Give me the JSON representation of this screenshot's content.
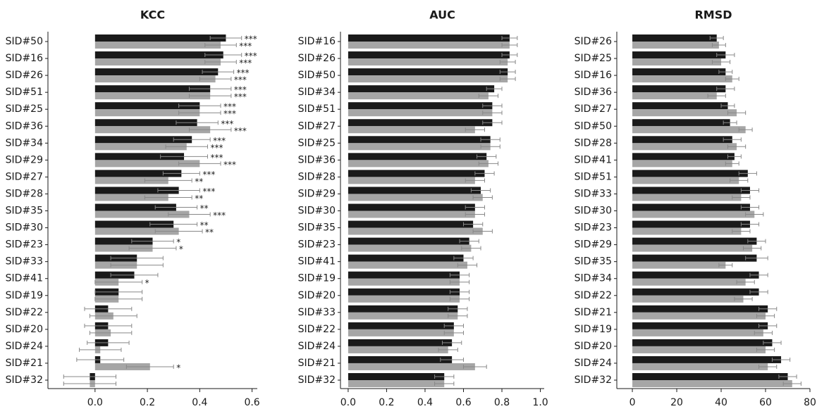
{
  "chart_data": [
    {
      "type": "bar",
      "orientation": "horizontal",
      "title": "KCC",
      "categories": [
        "SID#50",
        "SID#16",
        "SID#26",
        "SID#51",
        "SID#25",
        "SID#36",
        "SID#34",
        "SID#29",
        "SID#27",
        "SID#28",
        "SID#35",
        "SID#30",
        "SID#23",
        "SID#33",
        "SID#41",
        "SID#19",
        "SID#22",
        "SID#20",
        "SID#24",
        "SID#21",
        "SID#32"
      ],
      "series": [
        {
          "color": "#1a1a1a",
          "values": [
            0.5,
            0.49,
            0.47,
            0.44,
            0.4,
            0.39,
            0.37,
            0.34,
            0.33,
            0.32,
            0.31,
            0.3,
            0.22,
            0.16,
            0.15,
            0.09,
            0.05,
            0.05,
            0.05,
            0.02,
            -0.02
          ],
          "errors": [
            0.06,
            0.07,
            0.06,
            0.08,
            0.08,
            0.08,
            0.07,
            0.09,
            0.07,
            0.08,
            0.08,
            0.09,
            0.08,
            0.1,
            0.09,
            0.09,
            0.09,
            0.09,
            0.08,
            0.09,
            0.1
          ],
          "significance": [
            "***",
            "***",
            "***",
            "***",
            "***",
            "***",
            "***",
            "***",
            "***",
            "***",
            "**",
            "**",
            "*",
            null,
            null,
            null,
            null,
            null,
            null,
            null,
            null
          ]
        },
        {
          "color": "#a6a6a6",
          "values": [
            0.48,
            0.48,
            0.46,
            0.44,
            0.4,
            0.44,
            0.35,
            0.4,
            0.28,
            0.28,
            0.36,
            0.32,
            0.22,
            0.16,
            0.09,
            0.09,
            0.07,
            0.06,
            0.02,
            0.21,
            -0.02
          ],
          "errors": [
            0.06,
            0.06,
            0.06,
            0.08,
            0.08,
            0.08,
            0.08,
            0.08,
            0.09,
            0.09,
            0.08,
            0.09,
            0.09,
            0.1,
            0.09,
            0.09,
            0.09,
            0.08,
            0.08,
            0.09,
            0.1
          ],
          "significance": [
            "***",
            "***",
            "***",
            "***",
            "***",
            "***",
            "***",
            "***",
            "**",
            "**",
            "***",
            "**",
            "*",
            null,
            "*",
            null,
            null,
            null,
            null,
            "*",
            null
          ]
        }
      ],
      "xlim": [
        -0.18,
        0.62
      ],
      "xticks": [
        {
          "value": 0,
          "label": "0.0"
        },
        0.2,
        0.4,
        0.6
      ]
    },
    {
      "type": "bar",
      "orientation": "horizontal",
      "title": "AUC",
      "categories": [
        "SID#16",
        "SID#26",
        "SID#50",
        "SID#34",
        "SID#51",
        "SID#27",
        "SID#25",
        "SID#36",
        "SID#28",
        "SID#29",
        "SID#30",
        "SID#35",
        "SID#23",
        "SID#41",
        "SID#19",
        "SID#20",
        "SID#33",
        "SID#22",
        "SID#24",
        "SID#21",
        "SID#32"
      ],
      "series": [
        {
          "color": "#1a1a1a",
          "values": [
            0.84,
            0.84,
            0.83,
            0.76,
            0.75,
            0.75,
            0.74,
            0.72,
            0.71,
            0.69,
            0.66,
            0.65,
            0.63,
            0.6,
            0.58,
            0.58,
            0.57,
            0.55,
            0.54,
            0.54,
            0.5
          ],
          "errors": [
            0.04,
            0.04,
            0.04,
            0.04,
            0.05,
            0.05,
            0.05,
            0.05,
            0.05,
            0.05,
            0.05,
            0.05,
            0.05,
            0.05,
            0.05,
            0.05,
            0.05,
            0.05,
            0.05,
            0.06,
            0.05
          ]
        },
        {
          "color": "#a6a6a6",
          "values": [
            0.84,
            0.83,
            0.83,
            0.73,
            0.75,
            0.66,
            0.74,
            0.73,
            0.66,
            0.7,
            0.66,
            0.7,
            0.64,
            0.62,
            0.58,
            0.58,
            0.57,
            0.55,
            0.52,
            0.66,
            0.5
          ],
          "errors": [
            0.04,
            0.04,
            0.04,
            0.05,
            0.05,
            0.05,
            0.05,
            0.05,
            0.05,
            0.05,
            0.05,
            0.05,
            0.05,
            0.05,
            0.05,
            0.05,
            0.05,
            0.05,
            0.05,
            0.06,
            0.05
          ]
        }
      ],
      "xlim": [
        -0.04,
        1.02
      ],
      "xticks": [
        {
          "value": 0,
          "label": "0.0"
        },
        0.2,
        0.4,
        0.6,
        0.8,
        {
          "value": 1,
          "label": "1.0"
        }
      ]
    },
    {
      "type": "bar",
      "orientation": "horizontal",
      "title": "RMSD",
      "categories": [
        "SID#26",
        "SID#25",
        "SID#16",
        "SID#36",
        "SID#27",
        "SID#50",
        "SID#28",
        "SID#41",
        "SID#51",
        "SID#33",
        "SID#30",
        "SID#23",
        "SID#29",
        "SID#35",
        "SID#34",
        "SID#22",
        "SID#21",
        "SID#19",
        "SID#20",
        "SID#24",
        "SID#32"
      ],
      "series": [
        {
          "color": "#1a1a1a",
          "values": [
            38,
            42,
            42,
            42,
            43,
            44,
            45,
            46,
            52,
            53,
            53,
            53,
            56,
            56,
            57,
            57,
            61,
            61,
            63,
            67,
            70
          ],
          "errors": [
            3,
            4,
            3,
            4,
            3,
            3,
            4,
            3,
            4,
            4,
            4,
            4,
            4,
            5,
            4,
            4,
            4,
            4,
            4,
            4,
            4
          ]
        },
        {
          "color": "#a6a6a6",
          "values": [
            39,
            40,
            45,
            38,
            47,
            51,
            47,
            45,
            48,
            49,
            55,
            49,
            54,
            42,
            51,
            50,
            60,
            59,
            60,
            61,
            72
          ],
          "errors": [
            3,
            4,
            3,
            4,
            4,
            3,
            4,
            3,
            4,
            4,
            4,
            4,
            4,
            3,
            4,
            4,
            4,
            4,
            4,
            4,
            4
          ]
        }
      ],
      "xlim": [
        -7,
        80
      ],
      "xticks": [
        0,
        20,
        40,
        60,
        80
      ]
    }
  ]
}
